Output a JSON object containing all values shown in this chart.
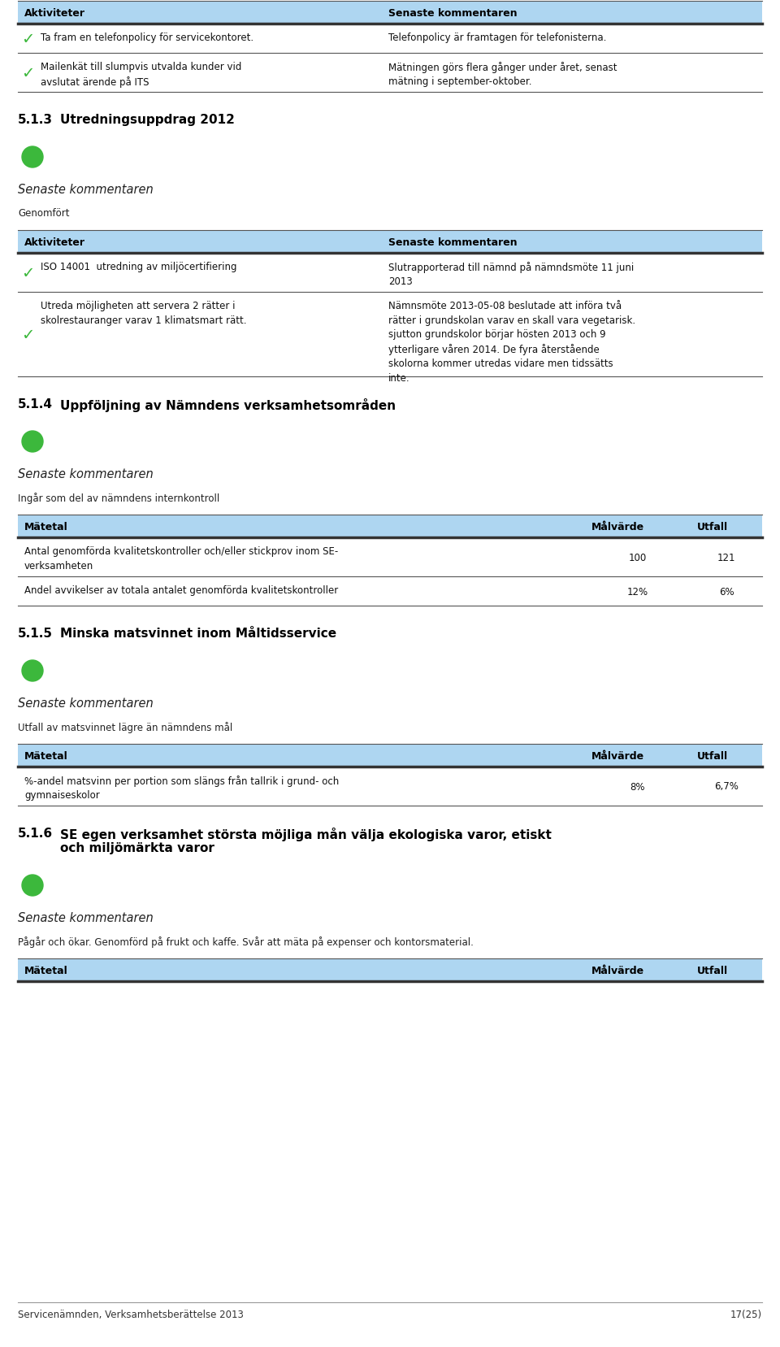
{
  "bg_color": "#ffffff",
  "header_bg": "#aed6f1",
  "green_dot_color": "#3cb83c",
  "checkmark_color": "#3cb83c",
  "sections": [
    {
      "type": "table_aktiviteter",
      "header": [
        "Aktiviteter",
        "Senaste kommentaren"
      ],
      "rows": [
        {
          "left": "Ta fram en telefonpolicy för servicekontoret.",
          "right": "Telefonpolicy är framtagen för telefonisterna.",
          "checkmark": true
        },
        {
          "left": "Mailenkät till slumpvis utvalda kunder vid\navslutat ärende på ITS",
          "right": "Mätningen görs flera gånger under året, senast\nmätning i september-oktober.",
          "checkmark": true
        }
      ]
    },
    {
      "type": "section_header",
      "number": "5.1.3",
      "title": "Utredningsuppdrag 2012"
    },
    {
      "type": "green_dot"
    },
    {
      "type": "italic_label",
      "text": "Senaste kommentaren"
    },
    {
      "type": "plain_text",
      "text": "Genomfört"
    },
    {
      "type": "table_aktiviteter",
      "header": [
        "Aktiviteter",
        "Senaste kommentaren"
      ],
      "rows": [
        {
          "left": "ISO 14001  utredning av miljöcertifiering",
          "right": "Slutrapporterad till nämnd på nämndsmöte 11 juni\n2013",
          "checkmark": true
        },
        {
          "left": "Utreda möjligheten att servera 2 rätter i\nskolrestauranger varav 1 klimatsmart rätt.",
          "right": "Nämnsmöte 2013-05-08 beslutade att införa två\nrätter i grundskolan varav en skall vara vegetarisk.\nsjutton grundskolor börjar hösten 2013 och 9\nytterligare våren 2014. De fyra återstående\nskolorna kommer utredas vidare men tidssätts\ninte.",
          "checkmark": true
        }
      ]
    },
    {
      "type": "section_header",
      "number": "5.1.4",
      "title": "Uppföljning av Nämndens verksamhetsområden"
    },
    {
      "type": "green_dot"
    },
    {
      "type": "italic_label",
      "text": "Senaste kommentaren"
    },
    {
      "type": "plain_text",
      "text": "Ingår som del av nämndens internkontroll"
    },
    {
      "type": "table_mätetal",
      "header": [
        "Mätetal",
        "Målvärde",
        "Utfall"
      ],
      "rows": [
        {
          "left": "Antal genomförda kvalitetskontroller och/eller stickprov inom SE-\nverksamheten",
          "mid": "100",
          "right": "121"
        },
        {
          "left": "Andel avvikelser av totala antalet genomförda kvalitetskontroller",
          "mid": "12%",
          "right": "6%"
        }
      ]
    },
    {
      "type": "section_header",
      "number": "5.1.5",
      "title": "Minska matsvinnet inom Måltidsservice"
    },
    {
      "type": "green_dot"
    },
    {
      "type": "italic_label",
      "text": "Senaste kommentaren"
    },
    {
      "type": "plain_text",
      "text": "Utfall av matsvinnet lägre än nämndens mål"
    },
    {
      "type": "table_mätetal",
      "header": [
        "Mätetal",
        "Målvärde",
        "Utfall"
      ],
      "rows": [
        {
          "left": "%-andel matsvinn per portion som slängs från tallrik i grund- och\ngymnaiseskolor",
          "mid": "8%",
          "right": "6,7%"
        }
      ]
    },
    {
      "type": "section_header_two_lines",
      "number": "5.1.6",
      "title_line1": "SE egen verksamhet största möjliga mån välja ekologiska varor, etiskt",
      "title_line2": "och miljömärkta varor"
    },
    {
      "type": "green_dot"
    },
    {
      "type": "italic_label",
      "text": "Senaste kommentaren"
    },
    {
      "type": "plain_text",
      "text": "Pågår och ökar. Genomförd på frukt och kaffe. Svår att mäta på expenser och kontorsmaterial."
    },
    {
      "type": "table_mätetal_header_only",
      "header": [
        "Mätetal",
        "Målvärde",
        "Utfall"
      ]
    }
  ],
  "footer_left": "Servicenämnden, Verksamhetsberättelse 2013",
  "footer_right": "17(25)"
}
